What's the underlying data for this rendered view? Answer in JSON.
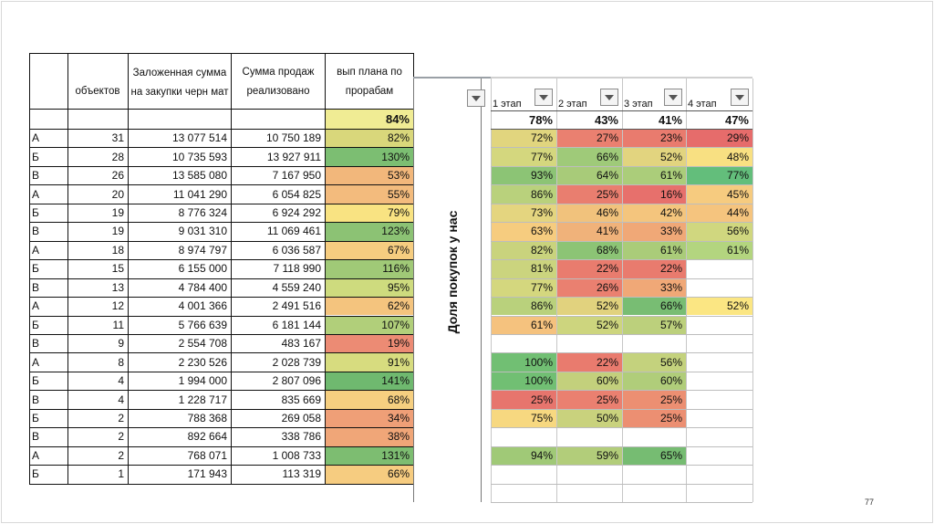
{
  "left_table": {
    "headers": {
      "c1": "объектов",
      "c2": "Заложенная сумма на закупки черн мат",
      "c3": "Сумма продаж реализовано",
      "c4": "вып плана по прорабам"
    },
    "total": "84%",
    "rows": [
      {
        "g": "А",
        "n": "31",
        "s1": "13 077 514",
        "s2": "10 750 189",
        "p": "82%",
        "bg": "#d9d77b"
      },
      {
        "g": "Б",
        "n": "28",
        "s1": "10 735 593",
        "s2": "13 927 911",
        "p": "130%",
        "bg": "#7cbe72"
      },
      {
        "g": "В",
        "n": "26",
        "s1": "13 585 080",
        "s2": "7 167 950",
        "p": "53%",
        "bg": "#f2b77b"
      },
      {
        "g": "А",
        "n": "20",
        "s1": "11 041 290",
        "s2": "6 054 825",
        "p": "55%",
        "bg": "#f3bb7d"
      },
      {
        "g": "Б",
        "n": "19",
        "s1": "8 776 324",
        "s2": "6 924 292",
        "p": "79%",
        "bg": "#f9e382"
      },
      {
        "g": "В",
        "n": "19",
        "s1": "9 031 310",
        "s2": "11 069 461",
        "p": "123%",
        "bg": "#8cc274"
      },
      {
        "g": "А",
        "n": "18",
        "s1": "8 974 797",
        "s2": "6 036 587",
        "p": "67%",
        "bg": "#f6cd80"
      },
      {
        "g": "Б",
        "n": "15",
        "s1": "6 155 000",
        "s2": "7 118 990",
        "p": "116%",
        "bg": "#a0c977"
      },
      {
        "g": "В",
        "n": "13",
        "s1": "4 784 400",
        "s2": "4 559 240",
        "p": "95%",
        "bg": "#cedb7e"
      },
      {
        "g": "А",
        "n": "12",
        "s1": "4 001 366",
        "s2": "2 491 516",
        "p": "62%",
        "bg": "#f4c47e"
      },
      {
        "g": "Б",
        "n": "11",
        "s1": "5 766 639",
        "s2": "6 181 144",
        "p": "107%",
        "bg": "#b1cf7a"
      },
      {
        "g": "В",
        "n": "9",
        "s1": "2 554 708",
        "s2": "483 167",
        "p": "19%",
        "bg": "#ec8b74"
      },
      {
        "g": "А",
        "n": "8",
        "s1": "2 230 526",
        "s2": "2 028 739",
        "p": "91%",
        "bg": "#d7dc7f"
      },
      {
        "g": "Б",
        "n": "4",
        "s1": "1 994 000",
        "s2": "2 807 096",
        "p": "141%",
        "bg": "#6fb96f"
      },
      {
        "g": "В",
        "n": "4",
        "s1": "1 228 717",
        "s2": "835 669",
        "p": "68%",
        "bg": "#f6cf80"
      },
      {
        "g": "Б",
        "n": "2",
        "s1": "788 368",
        "s2": "269 058",
        "p": "34%",
        "bg": "#ef9f77"
      },
      {
        "g": "В",
        "n": "2",
        "s1": "892 664",
        "s2": "338 786",
        "p": "38%",
        "bg": "#f0a678"
      },
      {
        "g": "А",
        "n": "2",
        "s1": "768 071",
        "s2": "1 008 733",
        "p": "131%",
        "bg": "#7dbd71"
      },
      {
        "g": "Б",
        "n": "1",
        "s1": "171 943",
        "s2": "113 319",
        "p": "66%",
        "bg": "#f6cc80"
      }
    ]
  },
  "right_table": {
    "vertical_label": "Доля покупок у нас",
    "stages": [
      "1 этап",
      "2 этап",
      "3 этап",
      "4 этап"
    ],
    "totals": [
      "78%",
      "43%",
      "41%",
      "47%"
    ],
    "rows": [
      [
        {
          "v": "72%",
          "bg": "#e1d57e"
        },
        {
          "v": "27%",
          "bg": "#ea8070"
        },
        {
          "v": "23%",
          "bg": "#e97b6e"
        },
        {
          "v": "29%",
          "bg": "#e66c6b"
        }
      ],
      [
        {
          "v": "77%",
          "bg": "#d4d77e"
        },
        {
          "v": "66%",
          "bg": "#9fca79"
        },
        {
          "v": "52%",
          "bg": "#e2d47f"
        },
        {
          "v": "48%",
          "bg": "#f8e082"
        }
      ],
      [
        {
          "v": "93%",
          "bg": "#8cc475"
        },
        {
          "v": "64%",
          "bg": "#a8cb79"
        },
        {
          "v": "61%",
          "bg": "#abcd7a"
        },
        {
          "v": "77%",
          "bg": "#63be7b"
        }
      ],
      [
        {
          "v": "86%",
          "bg": "#b9d17c"
        },
        {
          "v": "25%",
          "bg": "#e97e6f"
        },
        {
          "v": "16%",
          "bg": "#e7706c"
        },
        {
          "v": "45%",
          "bg": "#f6cb7f"
        }
      ],
      [
        {
          "v": "73%",
          "bg": "#e4d57f"
        },
        {
          "v": "46%",
          "bg": "#f1c27c"
        },
        {
          "v": "42%",
          "bg": "#f4c57d"
        },
        {
          "v": "44%",
          "bg": "#f5c47e"
        }
      ],
      [
        {
          "v": "63%",
          "bg": "#f6cc7f"
        },
        {
          "v": "41%",
          "bg": "#f0b27a"
        },
        {
          "v": "33%",
          "bg": "#f0a877"
        },
        {
          "v": "56%",
          "bg": "#d0d77f"
        }
      ],
      [
        {
          "v": "82%",
          "bg": "#c9d37d"
        },
        {
          "v": "68%",
          "bg": "#8cc475"
        },
        {
          "v": "61%",
          "bg": "#aacc79"
        },
        {
          "v": "61%",
          "bg": "#b3d57f"
        }
      ],
      [
        {
          "v": "81%",
          "bg": "#cbd47e"
        },
        {
          "v": "22%",
          "bg": "#e97c6e"
        },
        {
          "v": "22%",
          "bg": "#e97b6e"
        },
        {
          "v": "",
          "bg": "#ffffff"
        }
      ],
      [
        {
          "v": "77%",
          "bg": "#d4d77e"
        },
        {
          "v": "26%",
          "bg": "#ea8070"
        },
        {
          "v": "33%",
          "bg": "#f0a877"
        },
        {
          "v": "",
          "bg": "#ffffff"
        }
      ],
      [
        {
          "v": "86%",
          "bg": "#b9d17c"
        },
        {
          "v": "52%",
          "bg": "#e1d27e"
        },
        {
          "v": "66%",
          "bg": "#78bd73"
        },
        {
          "v": "52%",
          "bg": "#fbe683"
        }
      ],
      [
        {
          "v": "61%",
          "bg": "#f5c27e"
        },
        {
          "v": "52%",
          "bg": "#cdd57e"
        },
        {
          "v": "57%",
          "bg": "#bcd07c"
        },
        {
          "v": "",
          "bg": "#ffffff"
        }
      ],
      [
        {
          "v": "",
          "bg": "#ffffff"
        },
        {
          "v": "",
          "bg": "#ffffff"
        },
        {
          "v": "",
          "bg": "#ffffff"
        },
        {
          "v": "",
          "bg": "#ffffff"
        }
      ],
      [
        {
          "v": "100%",
          "bg": "#71bf73"
        },
        {
          "v": "22%",
          "bg": "#e97b6e"
        },
        {
          "v": "56%",
          "bg": "#c4d27d"
        },
        {
          "v": "",
          "bg": "#ffffff"
        }
      ],
      [
        {
          "v": "100%",
          "bg": "#71bf73"
        },
        {
          "v": "60%",
          "bg": "#c3d07c"
        },
        {
          "v": "60%",
          "bg": "#b0cd7a"
        },
        {
          "v": "",
          "bg": "#ffffff"
        }
      ],
      [
        {
          "v": "25%",
          "bg": "#e7756d"
        },
        {
          "v": "25%",
          "bg": "#ea8070"
        },
        {
          "v": "25%",
          "bg": "#ec8f72"
        },
        {
          "v": "",
          "bg": "#ffffff"
        }
      ],
      [
        {
          "v": "75%",
          "bg": "#f7d880"
        },
        {
          "v": "50%",
          "bg": "#c9d27d"
        },
        {
          "v": "25%",
          "bg": "#ec8f72"
        },
        {
          "v": "",
          "bg": "#ffffff"
        }
      ],
      [
        {
          "v": "",
          "bg": "#ffffff"
        },
        {
          "v": "",
          "bg": "#ffffff"
        },
        {
          "v": "",
          "bg": "#ffffff"
        },
        {
          "v": "",
          "bg": "#ffffff"
        }
      ],
      [
        {
          "v": "94%",
          "bg": "#a0c977"
        },
        {
          "v": "59%",
          "bg": "#b2cd7a"
        },
        {
          "v": "65%",
          "bg": "#76bc72"
        },
        {
          "v": "",
          "bg": "#ffffff"
        }
      ],
      [
        {
          "v": "",
          "bg": "#ffffff"
        },
        {
          "v": "",
          "bg": "#ffffff"
        },
        {
          "v": "",
          "bg": "#ffffff"
        },
        {
          "v": "",
          "bg": "#ffffff"
        }
      ],
      [
        {
          "v": "",
          "bg": "#ffffff"
        },
        {
          "v": "",
          "bg": "#ffffff"
        },
        {
          "v": "",
          "bg": "#ffffff"
        },
        {
          "v": "",
          "bg": "#ffffff"
        }
      ]
    ]
  },
  "page_number": "77"
}
